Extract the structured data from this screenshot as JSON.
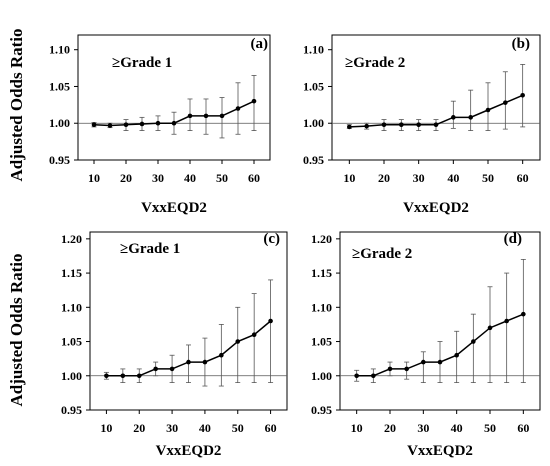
{
  "figure": {
    "ylabel_top": "Adjusted Odds Ratio",
    "ylabel_bottom": "Adjusted Odds Ratio"
  },
  "chart_data": [
    {
      "id": "a",
      "type": "line",
      "panel_label": "(a)",
      "annotation": "≥Grade 1",
      "xlabel": "VxxEQD2",
      "x": [
        10,
        15,
        20,
        25,
        30,
        35,
        40,
        45,
        50,
        55,
        60
      ],
      "y": [
        0.998,
        0.997,
        0.998,
        0.999,
        1.0,
        1.0,
        1.01,
        1.01,
        1.01,
        1.02,
        1.03
      ],
      "err_low": [
        0.995,
        0.994,
        0.99,
        0.99,
        0.99,
        0.985,
        0.99,
        0.985,
        0.98,
        0.985,
        0.99
      ],
      "err_high": [
        1.001,
        1.0,
        1.005,
        1.008,
        1.01,
        1.015,
        1.033,
        1.033,
        1.035,
        1.055,
        1.065
      ],
      "xticks": [
        10,
        20,
        30,
        40,
        50,
        60
      ],
      "xlim": [
        5,
        65
      ],
      "yticks": [
        0.95,
        1.0,
        1.05,
        1.1
      ],
      "ytick_labels": [
        "0.95",
        "1.00",
        "1.05",
        "1.10"
      ],
      "ylim": [
        0.95,
        1.12
      ],
      "ref_line": 1.0
    },
    {
      "id": "b",
      "type": "line",
      "panel_label": "(b)",
      "annotation": "≥Grade 2",
      "xlabel": "VxxEQD2",
      "x": [
        10,
        15,
        20,
        25,
        30,
        35,
        40,
        45,
        50,
        55,
        60
      ],
      "y": [
        0.995,
        0.996,
        0.998,
        0.998,
        0.998,
        0.998,
        1.008,
        1.008,
        1.018,
        1.028,
        1.038
      ],
      "err_low": [
        0.993,
        0.992,
        0.99,
        0.99,
        0.99,
        0.99,
        0.993,
        0.99,
        0.99,
        0.992,
        0.995
      ],
      "err_high": [
        0.998,
        1.0,
        1.005,
        1.005,
        1.005,
        1.005,
        1.03,
        1.045,
        1.055,
        1.07,
        1.08
      ],
      "xticks": [
        10,
        20,
        30,
        40,
        50,
        60
      ],
      "xlim": [
        5,
        65
      ],
      "yticks": [
        0.95,
        1.0,
        1.05,
        1.1
      ],
      "ytick_labels": [
        "0.95",
        "1.00",
        "1.05",
        "1.10"
      ],
      "ylim": [
        0.95,
        1.12
      ],
      "ref_line": 1.0
    },
    {
      "id": "c",
      "type": "line",
      "panel_label": "(c)",
      "annotation": "≥Grade 1",
      "xlabel": "VxxEQD2",
      "x": [
        10,
        15,
        20,
        25,
        30,
        35,
        40,
        45,
        50,
        55,
        60
      ],
      "y": [
        1.0,
        1.0,
        1.0,
        1.01,
        1.01,
        1.02,
        1.02,
        1.03,
        1.05,
        1.06,
        1.08
      ],
      "err_low": [
        0.995,
        0.99,
        0.99,
        1.0,
        0.99,
        0.99,
        0.985,
        0.985,
        0.99,
        0.99,
        0.99
      ],
      "err_high": [
        1.005,
        1.01,
        1.01,
        1.02,
        1.03,
        1.045,
        1.055,
        1.075,
        1.1,
        1.12,
        1.14
      ],
      "xticks": [
        10,
        20,
        30,
        40,
        50,
        60
      ],
      "xlim": [
        5,
        65
      ],
      "yticks": [
        0.95,
        1.0,
        1.05,
        1.1,
        1.15,
        1.2
      ],
      "ytick_labels": [
        "0.95",
        "1.00",
        "1.05",
        "1.10",
        "1.15",
        "1.20"
      ],
      "ylim": [
        0.95,
        1.21
      ],
      "ref_line": 1.0
    },
    {
      "id": "d",
      "type": "line",
      "panel_label": "(d)",
      "annotation": "≥Grade 2",
      "xlabel": "VxxEQD2",
      "x": [
        10,
        15,
        20,
        25,
        30,
        35,
        40,
        45,
        50,
        55,
        60
      ],
      "y": [
        1.0,
        1.0,
        1.01,
        1.01,
        1.02,
        1.02,
        1.03,
        1.05,
        1.07,
        1.08,
        1.09
      ],
      "err_low": [
        0.992,
        0.99,
        1.0,
        0.995,
        0.99,
        0.99,
        0.99,
        0.99,
        0.99,
        0.99,
        0.99
      ],
      "err_high": [
        1.008,
        1.01,
        1.02,
        1.02,
        1.035,
        1.05,
        1.065,
        1.09,
        1.13,
        1.15,
        1.17
      ],
      "xticks": [
        10,
        20,
        30,
        40,
        50,
        60
      ],
      "xlim": [
        5,
        65
      ],
      "yticks": [
        0.95,
        1.0,
        1.05,
        1.1,
        1.15,
        1.2
      ],
      "ytick_labels": [
        "0.95",
        "1.00",
        "1.05",
        "1.10",
        "1.15",
        "1.20"
      ],
      "ylim": [
        0.95,
        1.21
      ],
      "ref_line": 1.0
    }
  ]
}
